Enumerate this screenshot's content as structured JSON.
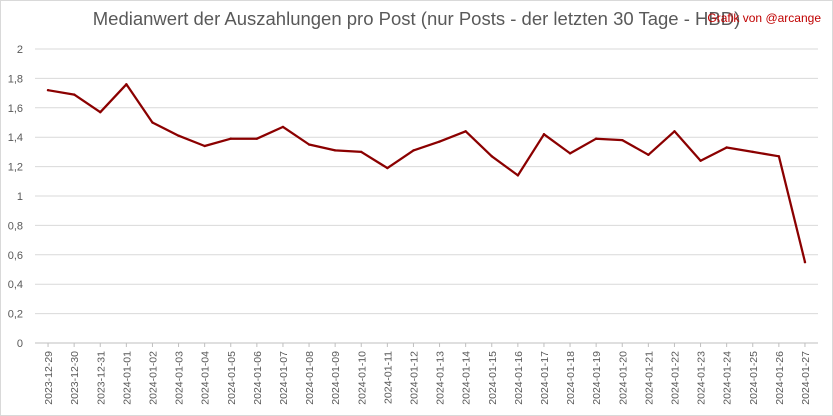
{
  "chart_data": {
    "type": "line",
    "title": "Medianwert der Auszahlungen pro Post (nur Posts - der letzten 30 Tage - HBD)",
    "annotation": "Grafik von @arcange",
    "xlabel": "",
    "ylabel": "",
    "ylim": [
      0,
      2
    ],
    "yticks": [
      "0",
      "0,2",
      "0,4",
      "0,6",
      "0,8",
      "1",
      "1,2",
      "1,4",
      "1,6",
      "1,8",
      "2"
    ],
    "grid": true,
    "categories": [
      "2023-12-29",
      "2023-12-30",
      "2023-12-31",
      "2024-01-01",
      "2024-01-02",
      "2024-01-03",
      "2024-01-04",
      "2024-01-05",
      "2024-01-06",
      "2024-01-07",
      "2024-01-08",
      "2024-01-09",
      "2024-01-10",
      "2024-01-11",
      "2024-01-12",
      "2024-01-13",
      "2024-01-14",
      "2024-01-15",
      "2024-01-16",
      "2024-01-17",
      "2024-01-18",
      "2024-01-19",
      "2024-01-20",
      "2024-01-21",
      "2024-01-22",
      "2024-01-23",
      "2024-01-24",
      "2024-01-25",
      "2024-01-26",
      "2024-01-27"
    ],
    "values": [
      1.72,
      1.69,
      1.57,
      1.76,
      1.5,
      1.41,
      1.34,
      1.39,
      1.39,
      1.47,
      1.35,
      1.31,
      1.3,
      1.19,
      1.31,
      1.37,
      1.44,
      1.27,
      1.14,
      1.42,
      1.29,
      1.39,
      1.38,
      1.28,
      1.44,
      1.24,
      1.33,
      1.3,
      1.27,
      0.55
    ],
    "line_color": "#8b0000",
    "annotation_color": "#c00000"
  }
}
